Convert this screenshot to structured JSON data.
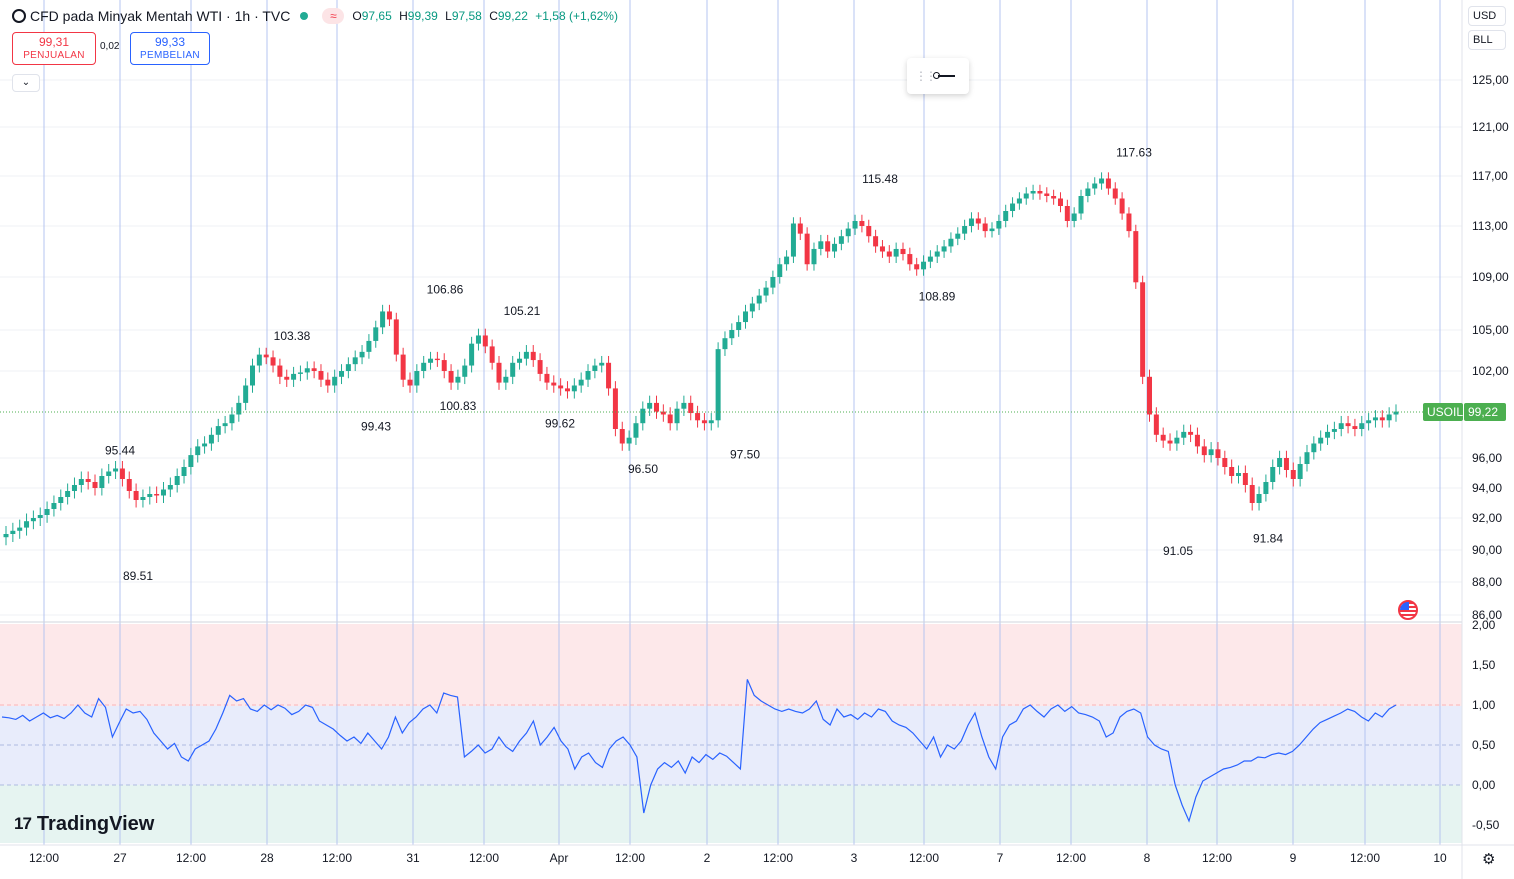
{
  "header": {
    "title": "CFD pada Minyak Mentah WTI · 1h · TVC",
    "open_label": "O",
    "open_value": "97,65",
    "high_label": "H",
    "high_value": "99,39",
    "low_label": "L",
    "low_value": "97,58",
    "close_label": "C",
    "close_value": "99,22",
    "change": "+1,58 (+1,62%)"
  },
  "trade": {
    "sell_price": "99,31",
    "sell_label": "PENJUALAN",
    "spread": "0,02",
    "buy_price": "99,33",
    "buy_label": "PEMBELIAN"
  },
  "axis_controls": {
    "currency": "USD",
    "unit": "BLL"
  },
  "price_tag": {
    "symbol": "USOIL",
    "price": "99,22"
  },
  "branding": {
    "logo_text": "TradingView"
  },
  "icons": [
    "tradingview-logo-icon",
    "chevron-down-icon",
    "drag-grip-icon",
    "line-tool-icon",
    "us-flag-icon",
    "settings-gear-icon",
    "indicator-icon"
  ],
  "colors": {
    "up": "#22ab94",
    "down": "#f23645",
    "oscillator": "#2962ff",
    "grid": "#e0e3eb",
    "vline": "#b5c4f0"
  },
  "chart_data": [
    {
      "type": "candlestick",
      "title": "",
      "y_ticks": [
        "125,00",
        "121,00",
        "117,00",
        "113,00",
        "109,00",
        "105,00",
        "102,00",
        "96,00",
        "94,00",
        "92,00",
        "90,00",
        "88,00",
        "86,00"
      ],
      "x_ticks": [
        "12:00",
        "27",
        "12:00",
        "28",
        "12:00",
        "31",
        "12:00",
        "Apr",
        "12:00",
        "2",
        "12:00",
        "3",
        "12:00",
        "7",
        "12:00",
        "8",
        "12:00",
        "9",
        "12:00",
        "10"
      ],
      "annotations": [
        "95.44",
        "89.51",
        "103.38",
        "99.43",
        "106.86",
        "100.83",
        "105.21",
        "99.62",
        "96.50",
        "97.50",
        "115.48",
        "108.89",
        "117.63",
        "91.05",
        "91.84"
      ],
      "close_series": [
        91.0,
        91.2,
        91.4,
        91.8,
        92.0,
        92.2,
        92.6,
        93.0,
        93.4,
        93.8,
        94.2,
        94.6,
        94.4,
        94.0,
        94.8,
        95.1,
        95.3,
        94.6,
        93.8,
        93.2,
        93.4,
        93.6,
        93.5,
        93.9,
        94.2,
        94.8,
        95.4,
        96.2,
        96.8,
        97.0,
        97.6,
        98.2,
        98.4,
        99.0,
        99.8,
        101.0,
        102.4,
        103.2,
        103.0,
        102.4,
        101.6,
        101.4,
        101.8,
        101.9,
        102.2,
        102.0,
        101.4,
        101.0,
        101.6,
        102.0,
        102.5,
        103.0,
        103.4,
        104.2,
        105.2,
        106.4,
        105.8,
        103.2,
        101.4,
        101.0,
        102.0,
        102.6,
        102.9,
        102.8,
        102.0,
        101.2,
        101.6,
        102.4,
        104.0,
        104.6,
        103.8,
        102.6,
        101.2,
        101.6,
        102.6,
        102.9,
        103.4,
        102.8,
        101.8,
        101.2,
        101.0,
        100.8,
        100.6,
        101.0,
        101.4,
        102.0,
        102.4,
        102.6,
        100.8,
        98.0,
        97.0,
        97.4,
        98.4,
        99.4,
        99.8,
        99.2,
        99.0,
        98.4,
        99.4,
        99.8,
        99.1,
        98.6,
        98.4,
        98.6,
        103.6,
        104.4,
        105.0,
        105.6,
        106.4,
        107.0,
        107.6,
        108.2,
        109.0,
        110.0,
        110.6,
        113.2,
        112.4,
        110.0,
        111.2,
        111.8,
        111.0,
        111.6,
        112.2,
        112.8,
        113.4,
        113.0,
        112.2,
        111.4,
        111.0,
        110.6,
        111.2,
        110.8,
        110.0,
        109.6,
        110.2,
        110.6,
        111.0,
        111.4,
        112.0,
        112.4,
        113.0,
        113.6,
        113.2,
        112.6,
        112.8,
        113.4,
        114.2,
        114.8,
        115.2,
        115.6,
        115.8,
        115.6,
        115.4,
        115.2,
        114.6,
        113.4,
        114.0,
        115.4,
        116.0,
        116.4,
        116.8,
        116.0,
        115.2,
        114.0,
        112.6,
        108.6,
        101.6,
        99.0,
        97.6,
        97.2,
        97.0,
        97.4,
        97.8,
        97.6,
        96.8,
        96.2,
        96.6,
        96.0,
        95.4,
        94.8,
        95.0,
        94.2,
        93.0,
        93.6,
        94.4,
        95.4,
        96.0,
        95.2,
        94.6,
        95.6,
        96.4,
        97.0,
        97.4,
        97.8,
        98.0,
        98.4,
        98.2,
        98.0,
        98.4,
        98.6,
        98.8,
        98.6,
        99.0,
        99.2
      ]
    },
    {
      "type": "line",
      "title": "",
      "y_ticks": [
        "2,00",
        "1,50",
        "1,00",
        "0,50",
        "0,00",
        "-0,50"
      ],
      "values": [
        0.85,
        0.84,
        0.82,
        0.87,
        0.8,
        0.85,
        0.9,
        0.84,
        0.87,
        0.83,
        0.9,
        1.0,
        0.9,
        0.85,
        1.08,
        0.97,
        0.6,
        0.78,
        0.95,
        0.9,
        0.92,
        0.82,
        0.65,
        0.55,
        0.45,
        0.52,
        0.35,
        0.3,
        0.45,
        0.5,
        0.55,
        0.7,
        0.9,
        1.12,
        1.05,
        1.08,
        0.95,
        0.92,
        1.0,
        0.94,
        1.0,
        0.96,
        0.88,
        0.92,
        1.0,
        0.97,
        0.8,
        0.75,
        0.7,
        0.62,
        0.55,
        0.6,
        0.52,
        0.65,
        0.55,
        0.45,
        0.6,
        0.85,
        0.65,
        0.78,
        0.85,
        0.95,
        1.0,
        0.9,
        1.15,
        1.12,
        1.1,
        0.35,
        0.42,
        0.5,
        0.4,
        0.45,
        0.6,
        0.48,
        0.42,
        0.55,
        0.65,
        0.8,
        0.5,
        0.6,
        0.72,
        0.55,
        0.45,
        0.2,
        0.35,
        0.4,
        0.28,
        0.22,
        0.45,
        0.55,
        0.6,
        0.5,
        0.35,
        -0.35,
        0.0,
        0.2,
        0.28,
        0.22,
        0.3,
        0.15,
        0.35,
        0.28,
        0.38,
        0.32,
        0.4,
        0.36,
        0.28,
        0.2,
        1.32,
        1.12,
        1.05,
        1.0,
        0.95,
        0.92,
        0.95,
        0.92,
        0.9,
        0.95,
        1.05,
        0.82,
        0.75,
        0.95,
        0.85,
        0.88,
        0.82,
        0.9,
        0.85,
        0.95,
        0.92,
        0.8,
        0.75,
        0.72,
        0.65,
        0.55,
        0.45,
        0.6,
        0.35,
        0.5,
        0.45,
        0.55,
        0.75,
        0.9,
        0.6,
        0.35,
        0.2,
        0.6,
        0.75,
        0.8,
        0.95,
        1.0,
        0.92,
        0.85,
        0.95,
        1.0,
        0.92,
        0.98,
        0.9,
        0.88,
        0.85,
        0.8,
        0.6,
        0.65,
        0.85,
        0.92,
        0.95,
        0.9,
        0.6,
        0.5,
        0.45,
        0.42,
        0.0,
        -0.25,
        -0.45,
        -0.15,
        0.05,
        0.1,
        0.15,
        0.2,
        0.22,
        0.25,
        0.3,
        0.3,
        0.35,
        0.34,
        0.38,
        0.4,
        0.38,
        0.42,
        0.5,
        0.6,
        0.7,
        0.78,
        0.82,
        0.86,
        0.9,
        0.95,
        0.92,
        0.85,
        0.8,
        0.9,
        0.85,
        0.95,
        1.0
      ]
    }
  ]
}
